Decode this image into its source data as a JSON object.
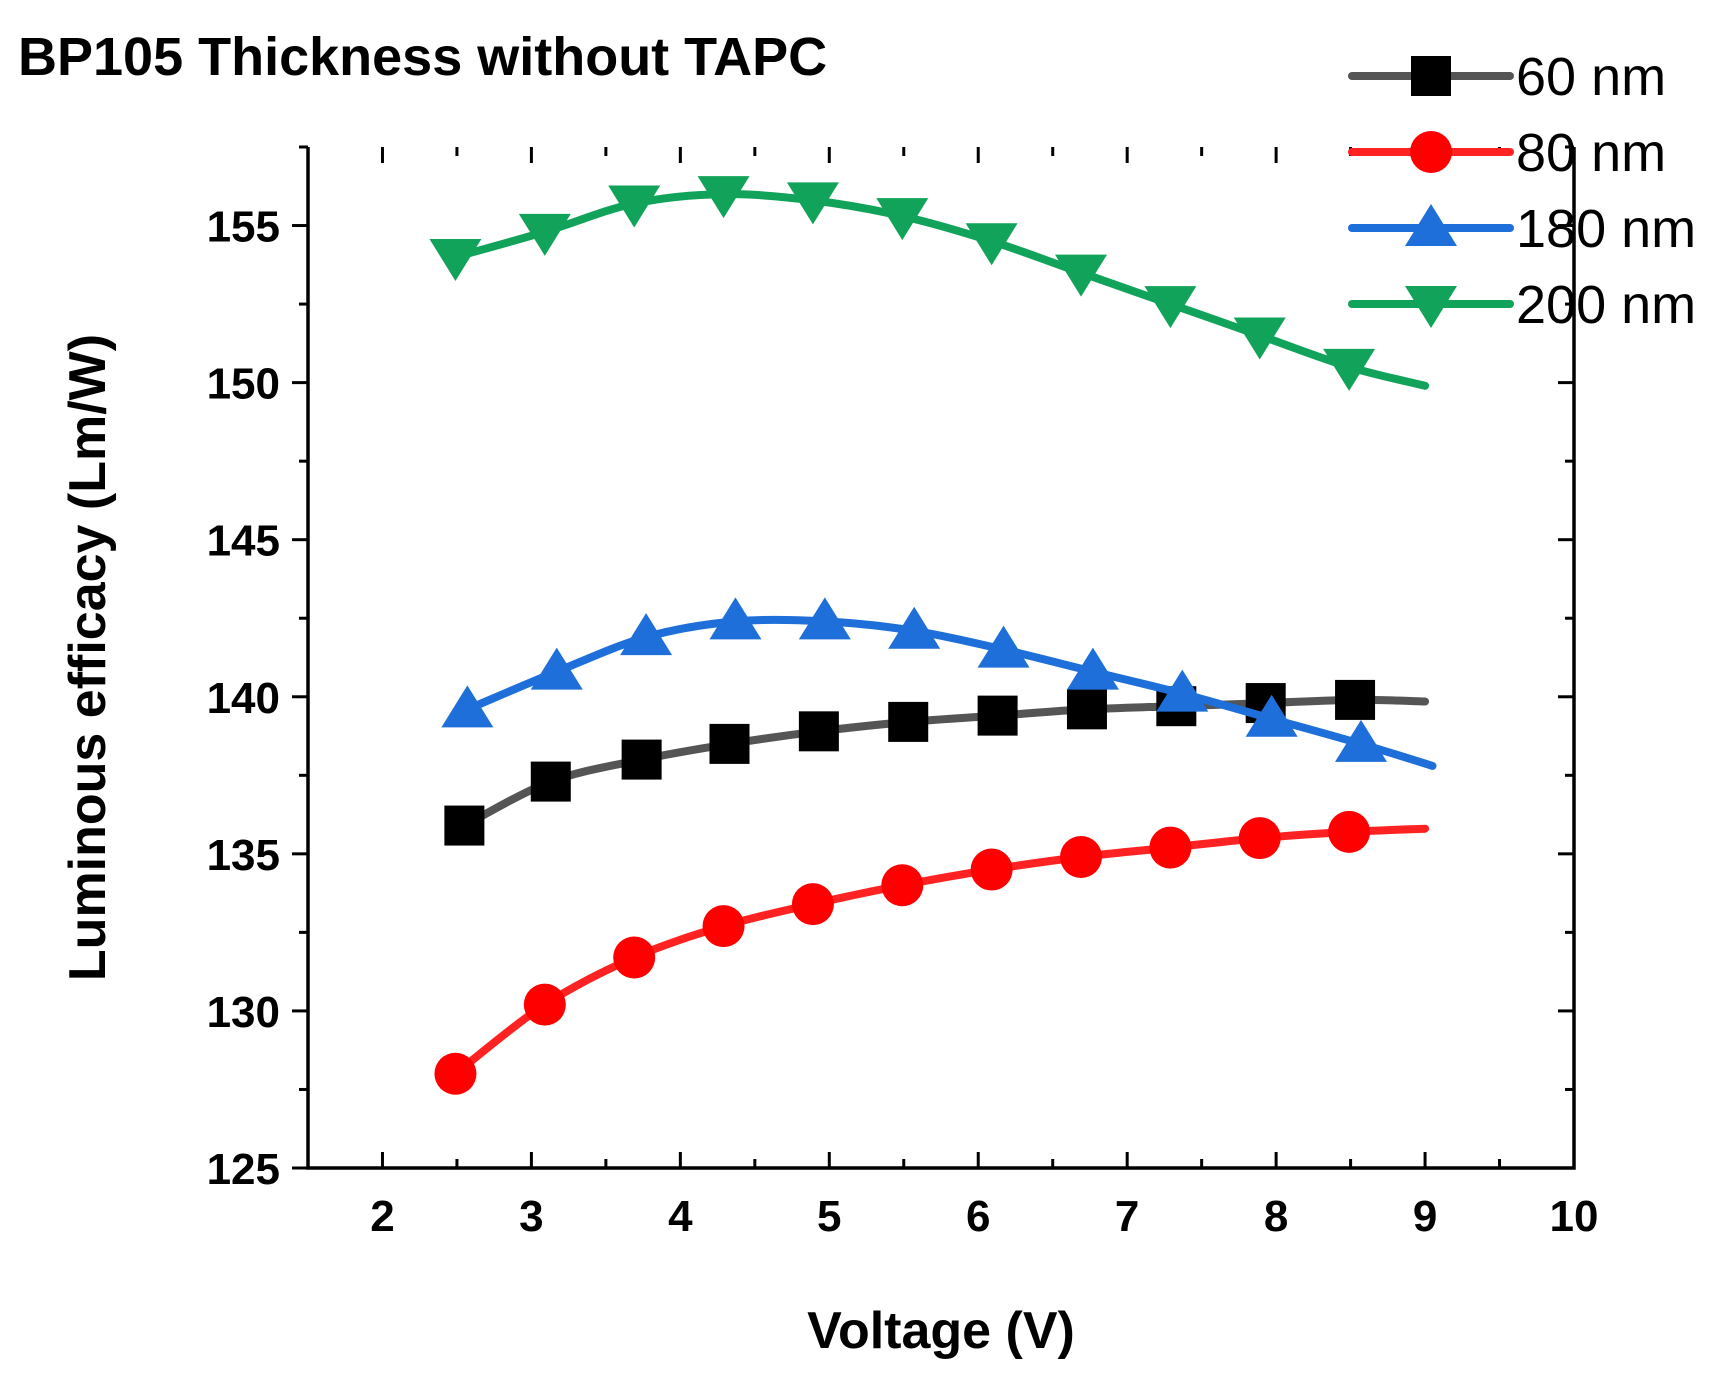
{
  "chart_data": {
    "type": "line",
    "title": "BP105 Thickness without TAPC",
    "xlabel": "Voltage (V)",
    "ylabel": "Luminous efficacy (Lm/W)",
    "xlim": [
      1.5,
      10
    ],
    "ylim": [
      125,
      157.5
    ],
    "x_ticks": [
      2,
      3,
      4,
      5,
      6,
      7,
      8,
      9,
      10
    ],
    "y_ticks": [
      125,
      130,
      135,
      140,
      145,
      150,
      155
    ],
    "grid": false,
    "legend_position": "top-right",
    "series": [
      {
        "name": "60 nm",
        "color": "#555555",
        "marker": "square",
        "x": [
          2.55,
          3.13,
          3.74,
          4.33,
          4.93,
          5.53,
          6.13,
          6.73,
          7.33,
          7.93,
          8.53
        ],
        "y": [
          135.9,
          137.3,
          138.0,
          138.5,
          138.9,
          139.2,
          139.4,
          139.6,
          139.7,
          139.8,
          139.9
        ],
        "line_end": [
          9.0,
          139.85
        ]
      },
      {
        "name": "80 nm",
        "color": "#ff2222",
        "marker": "circle",
        "x": [
          2.49,
          3.09,
          3.69,
          4.29,
          4.89,
          5.49,
          6.09,
          6.69,
          7.29,
          7.89,
          8.49
        ],
        "y": [
          128.0,
          130.2,
          131.7,
          132.7,
          133.4,
          134.0,
          134.5,
          134.9,
          135.2,
          135.5,
          135.7
        ],
        "line_end": [
          9.0,
          135.8
        ]
      },
      {
        "name": "180 nm",
        "color": "#1e6fd9",
        "marker": "triangle-up",
        "x": [
          2.57,
          3.17,
          3.77,
          4.37,
          4.97,
          5.57,
          6.17,
          6.77,
          7.37,
          7.97,
          8.57
        ],
        "y": [
          139.6,
          140.8,
          141.9,
          142.4,
          142.4,
          142.1,
          141.5,
          140.8,
          140.1,
          139.3,
          138.5
        ],
        "line_end": [
          9.05,
          137.8
        ]
      },
      {
        "name": "200 nm",
        "color": "#12a35a",
        "marker": "triangle-down",
        "x": [
          2.49,
          3.09,
          3.69,
          4.29,
          4.89,
          5.49,
          6.09,
          6.69,
          7.29,
          7.89,
          8.49
        ],
        "y": [
          154.0,
          154.8,
          155.7,
          156.0,
          155.8,
          155.3,
          154.5,
          153.5,
          152.5,
          151.5,
          150.5
        ],
        "line_end": [
          9.0,
          149.9
        ]
      }
    ]
  }
}
